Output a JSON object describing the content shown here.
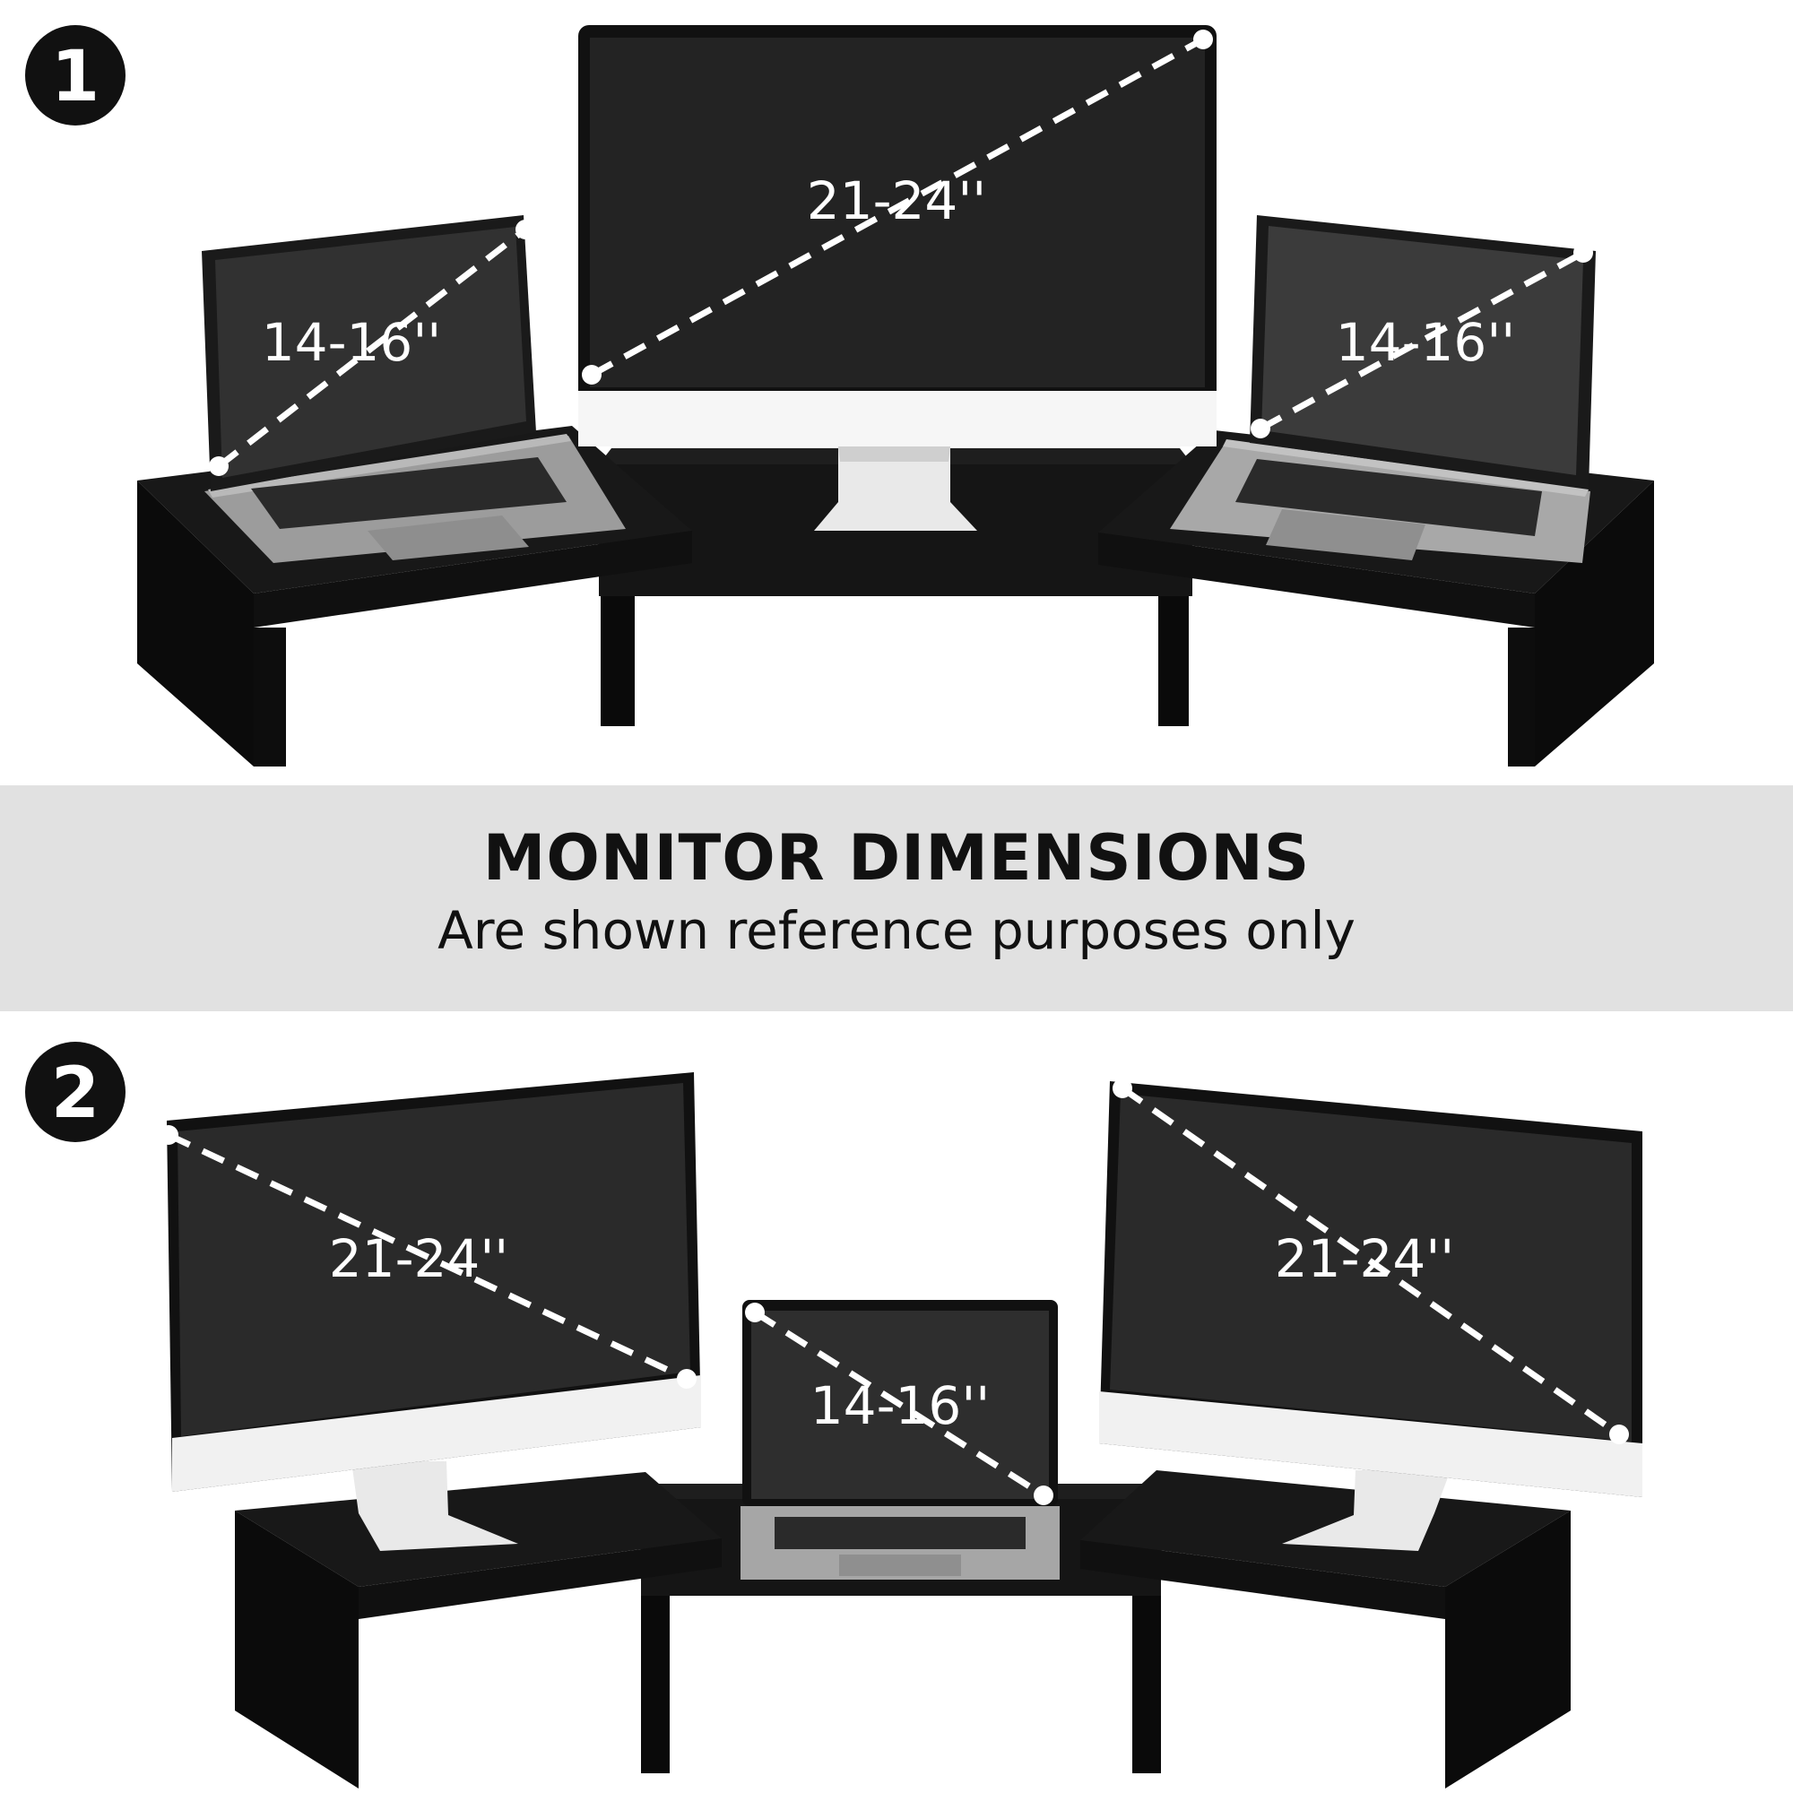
{
  "badges": {
    "first": "1",
    "second": "2"
  },
  "scene1": {
    "left_laptop_size": "14-16''",
    "center_monitor_size": "21-24''",
    "right_laptop_size": "14-16''"
  },
  "banner": {
    "title": "MONITOR DIMENSIONS",
    "subtitle": "Are shown reference purposes only"
  },
  "scene2": {
    "left_monitor_size": "21-24''",
    "center_laptop_size": "14-16''",
    "right_monitor_size": "21-24''"
  },
  "colors": {
    "stand": "#0d0d0d",
    "screen": "#222222",
    "banner_bg": "#e1e1e1",
    "dash": "#ffffff"
  }
}
